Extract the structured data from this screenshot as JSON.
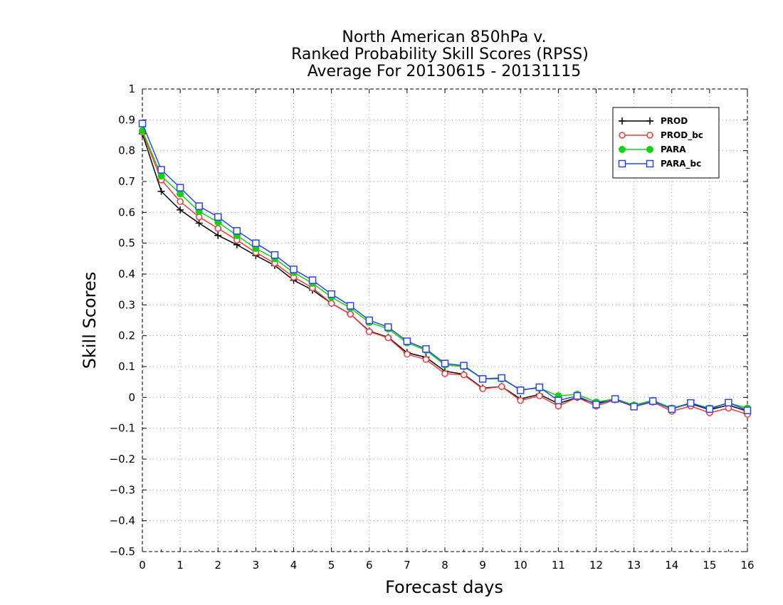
{
  "chart_data": {
    "type": "line",
    "title_lines": [
      "North American 850hPa v.",
      "Ranked Probability Skill Scores (RPSS)",
      "Average For 20130615 - 20131115"
    ],
    "xlabel": "Forecast days",
    "ylabel": "Skill Scores",
    "xlim": [
      0,
      16
    ],
    "ylim": [
      -0.5,
      1
    ],
    "xticks": [
      0,
      1,
      2,
      3,
      4,
      5,
      6,
      7,
      8,
      9,
      10,
      11,
      12,
      13,
      14,
      15,
      16
    ],
    "xtick_labels": [
      "0",
      "1",
      "2",
      "3",
      "4",
      "5",
      "6",
      "7",
      "8",
      "9",
      "10",
      "11",
      "12",
      "13",
      "14",
      "15",
      "16"
    ],
    "yticks": [
      -0.5,
      -0.4,
      -0.3,
      -0.2,
      -0.1,
      0,
      0.1,
      0.2,
      0.3,
      0.4,
      0.5,
      0.6,
      0.7,
      0.8,
      0.9,
      1
    ],
    "ytick_labels": [
      "−0.5",
      "−0.4",
      "−0.3",
      "−0.2",
      "−0.1",
      "0",
      "0.1",
      "0.2",
      "0.3",
      "0.4",
      "0.5",
      "0.6",
      "0.7",
      "0.8",
      "0.9",
      "1"
    ],
    "grid": true,
    "legend_position": "top-right",
    "x": [
      0,
      0.5,
      1,
      1.5,
      2,
      2.5,
      3,
      3.5,
      4,
      4.5,
      5,
      5.5,
      6,
      6.5,
      7,
      7.5,
      8,
      8.5,
      9,
      9.5,
      10,
      10.5,
      11,
      11.5,
      12,
      12.5,
      13,
      13.5,
      14,
      14.5,
      15,
      15.5,
      16
    ],
    "series": [
      {
        "name": "PROD",
        "color": "#000000",
        "marker": "plus",
        "values": [
          0.855,
          0.668,
          0.608,
          0.565,
          0.525,
          0.495,
          0.46,
          0.428,
          0.38,
          0.348,
          0.305,
          0.27,
          0.215,
          0.195,
          0.145,
          0.13,
          0.085,
          0.075,
          0.03,
          0.035,
          -0.005,
          0.01,
          -0.02,
          0.0,
          -0.02,
          -0.005,
          -0.025,
          -0.01,
          -0.035,
          -0.02,
          -0.04,
          -0.025,
          -0.045
        ]
      },
      {
        "name": "PROD_bc",
        "color": "#ef3b3b",
        "marker": "open-circle",
        "values": [
          0.86,
          0.705,
          0.635,
          0.585,
          0.548,
          0.51,
          0.47,
          0.435,
          0.39,
          0.355,
          0.305,
          0.27,
          0.213,
          0.193,
          0.14,
          0.123,
          0.077,
          0.073,
          0.028,
          0.035,
          -0.01,
          0.005,
          -0.028,
          0.0,
          -0.028,
          -0.008,
          -0.03,
          -0.015,
          -0.045,
          -0.028,
          -0.05,
          -0.035,
          -0.055
        ]
      },
      {
        "name": "PARA",
        "color": "#12d312",
        "marker": "filled-circle",
        "values": [
          0.865,
          0.718,
          0.66,
          0.603,
          0.568,
          0.525,
          0.483,
          0.45,
          0.405,
          0.37,
          0.325,
          0.29,
          0.243,
          0.222,
          0.177,
          0.153,
          0.105,
          0.1,
          0.06,
          0.06,
          0.025,
          0.03,
          0.005,
          0.01,
          -0.015,
          -0.005,
          -0.025,
          -0.01,
          -0.035,
          -0.018,
          -0.035,
          -0.018,
          -0.035
        ]
      },
      {
        "name": "PARA_bc",
        "color": "#2b45e8",
        "marker": "open-square",
        "values": [
          0.888,
          0.738,
          0.68,
          0.62,
          0.585,
          0.54,
          0.5,
          0.462,
          0.415,
          0.38,
          0.335,
          0.297,
          0.25,
          0.228,
          0.182,
          0.157,
          0.11,
          0.103,
          0.06,
          0.063,
          0.023,
          0.033,
          -0.01,
          0.005,
          -0.023,
          -0.005,
          -0.03,
          -0.012,
          -0.038,
          -0.018,
          -0.038,
          -0.017,
          -0.042
        ]
      }
    ]
  }
}
